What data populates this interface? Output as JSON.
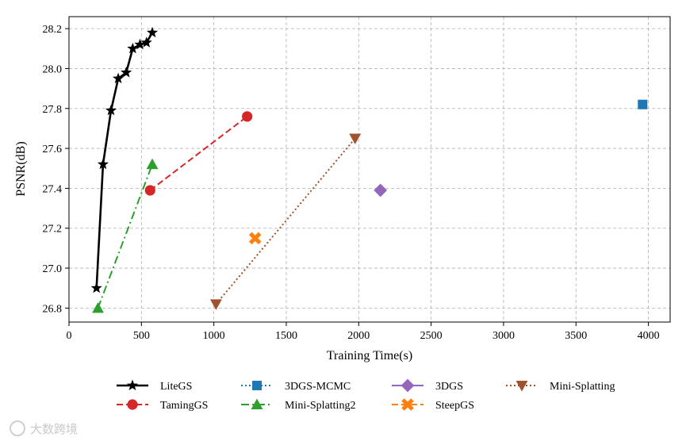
{
  "chart_data": {
    "type": "line",
    "title": "",
    "xlabel": "Training Time(s)",
    "ylabel": "PSNR(dB)",
    "xlim": [
      0,
      4150
    ],
    "ylim": [
      26.73,
      28.26
    ],
    "xticks": [
      0,
      500,
      1000,
      1500,
      2000,
      2500,
      3000,
      3500,
      4000
    ],
    "yticks": [
      26.8,
      27.0,
      27.2,
      27.4,
      27.6,
      27.8,
      28.0,
      28.2
    ],
    "grid": true,
    "legend_position": "bottom",
    "series": [
      {
        "name": "LiteGS",
        "color": "#000000",
        "linestyle": "solid",
        "marker": "star",
        "x": [
          190,
          235,
          290,
          340,
          395,
          440,
          490,
          535,
          575
        ],
        "y": [
          26.9,
          27.52,
          27.79,
          27.95,
          27.98,
          28.1,
          28.12,
          28.13,
          28.18
        ]
      },
      {
        "name": "TamingGS",
        "color": "#d62728",
        "linestyle": "dashed",
        "marker": "circle",
        "x": [
          560,
          1230
        ],
        "y": [
          27.39,
          27.76
        ]
      },
      {
        "name": "3DGS-MCMC",
        "color": "#1f77b4",
        "linestyle": "dotted",
        "marker": "square",
        "x": [
          3960
        ],
        "y": [
          27.82
        ]
      },
      {
        "name": "Mini-Splatting2",
        "color": "#2ca02c",
        "linestyle": "dashdot",
        "marker": "triangle-up",
        "x": [
          200,
          575
        ],
        "y": [
          26.8,
          27.52
        ]
      },
      {
        "name": "3DGS",
        "color": "#9467bd",
        "linestyle": "solid",
        "marker": "diamond",
        "x": [
          2150
        ],
        "y": [
          27.39
        ]
      },
      {
        "name": "SteepGS",
        "color": "#ff7f0e",
        "linestyle": "dashed",
        "marker": "x",
        "x": [
          1285
        ],
        "y": [
          27.15
        ]
      },
      {
        "name": "Mini-Splatting",
        "color": "#a0522d",
        "linestyle": "dotted",
        "marker": "triangle-down",
        "x": [
          1015,
          1975
        ],
        "y": [
          26.82,
          27.65
        ]
      }
    ]
  },
  "watermark": {
    "text": "大数跨境"
  }
}
